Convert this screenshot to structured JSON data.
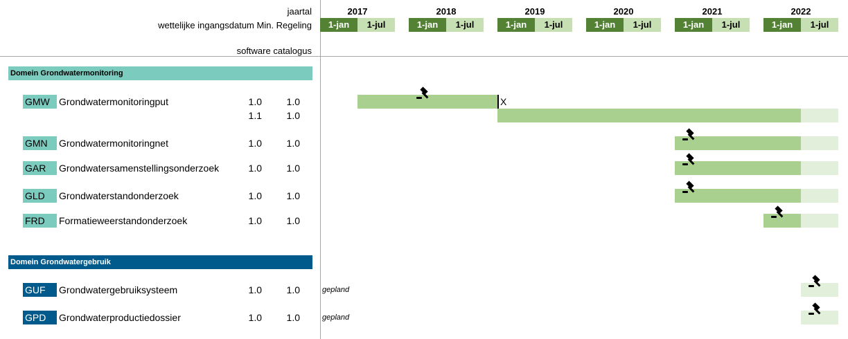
{
  "header": {
    "year_label": "jaartal",
    "date_label": "wettelijke ingangsdatum Min. Regeling",
    "software_label": "software catalogus"
  },
  "years": [
    {
      "year": "2017",
      "jan": "1-jan",
      "jul": "1-jul"
    },
    {
      "year": "2018",
      "jan": "1-jan",
      "jul": "1-jul"
    },
    {
      "year": "2019",
      "jan": "1-jan",
      "jul": "1-jul"
    },
    {
      "year": "2020",
      "jan": "1-jan",
      "jul": "1-jul"
    },
    {
      "year": "2021",
      "jan": "1-jan",
      "jul": "1-jul"
    },
    {
      "year": "2022",
      "jan": "1-jan",
      "jul": "1-jul"
    }
  ],
  "colors": {
    "domain1": "#7ccbbf",
    "domain2": "#005a8c",
    "jan": "#548235",
    "jul": "#c6e0b4",
    "active": "#a9d08e",
    "planned": "#e2efda"
  },
  "domains": [
    {
      "title": "Domein Grondwatermonitoring",
      "color": "#7ccbbf",
      "text_color": "#000000"
    },
    {
      "title": "Domein Grondwatergebruik",
      "color": "#005a8c",
      "text_color": "#ffffff"
    }
  ],
  "rows": [
    {
      "domain": 0,
      "code": "GMW",
      "name": "Grondwatermonitoringput",
      "v1": "1.0",
      "v2": "1.0",
      "gavel": "2018-01",
      "bars": [
        {
          "from": "2017-07",
          "to": "2019-01",
          "style": "active"
        }
      ],
      "marker": "X"
    },
    {
      "domain": 0,
      "code": "",
      "name": "",
      "v1": "1.1",
      "v2": "1.0",
      "bars": [
        {
          "from": "2019-01",
          "to": "2022-07",
          "style": "active"
        },
        {
          "from": "2022-07",
          "to": "2022-12",
          "style": "planned"
        }
      ]
    },
    {
      "domain": 0,
      "code": "GMN",
      "name": "Grondwatermonitoringnet",
      "v1": "1.0",
      "v2": "1.0",
      "gavel": "2021-01",
      "bars": [
        {
          "from": "2021-01",
          "to": "2022-07",
          "style": "active"
        },
        {
          "from": "2022-07",
          "to": "2022-12",
          "style": "planned"
        }
      ]
    },
    {
      "domain": 0,
      "code": "GAR",
      "name": "Grondwatersamenstellingsonderzoek",
      "v1": "1.0",
      "v2": "1.0",
      "gavel": "2021-01",
      "bars": [
        {
          "from": "2021-01",
          "to": "2022-07",
          "style": "active"
        },
        {
          "from": "2022-07",
          "to": "2022-12",
          "style": "planned"
        }
      ]
    },
    {
      "domain": 0,
      "code": "GLD",
      "name": "Grondwaterstandonderzoek",
      "v1": "1.0",
      "v2": "1.0",
      "gavel": "2021-01",
      "bars": [
        {
          "from": "2021-01",
          "to": "2022-07",
          "style": "active"
        },
        {
          "from": "2022-07",
          "to": "2022-12",
          "style": "planned"
        }
      ]
    },
    {
      "domain": 0,
      "code": "FRD",
      "name": "Formatieweerstandonderzoek",
      "v1": "1.0",
      "v2": "1.0",
      "gavel": "2022-01",
      "bars": [
        {
          "from": "2022-01",
          "to": "2022-07",
          "style": "active"
        },
        {
          "from": "2022-07",
          "to": "2022-12",
          "style": "planned"
        }
      ]
    },
    {
      "domain": 1,
      "code": "GUF",
      "name": "Grondwatergebruiksysteem",
      "v1": "1.0",
      "v2": "1.0",
      "status": "gepland",
      "gavel": "2022-07",
      "bars": [
        {
          "from": "2022-07",
          "to": "2022-12",
          "style": "planned"
        }
      ]
    },
    {
      "domain": 1,
      "code": "GPD",
      "name": "Grondwaterproductiedossier",
      "v1": "1.0",
      "v2": "1.0",
      "status": "gepland",
      "gavel": "2022-07",
      "bars": [
        {
          "from": "2022-07",
          "to": "2022-12",
          "style": "planned"
        }
      ]
    }
  ]
}
